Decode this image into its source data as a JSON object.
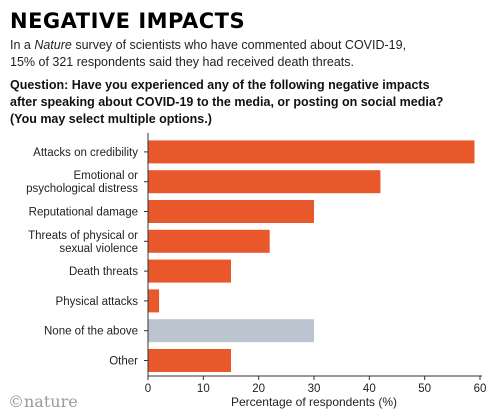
{
  "header": {
    "title": "NEGATIVE IMPACTS",
    "subtitle_pre": "In a ",
    "subtitle_em": "Nature",
    "subtitle_line1_post": " survey of scientists who have commented about COVID-19,",
    "subtitle_line2": "15% of 321 respondents said they had received death threats.",
    "question_lines": [
      "Question: Have you experienced any of the following negative impacts",
      "after speaking about COVID-19 to the media, or posting on social media?",
      "(You may select multiple options.)"
    ]
  },
  "logo": {
    "text": "©nature"
  },
  "colors": {
    "primary_bar": "#e8582b",
    "neutral_bar": "#bcc5cf",
    "axis": "#333333"
  },
  "chart_data": {
    "type": "bar",
    "orientation": "horizontal",
    "categories": [
      "Attacks on credibility",
      "Emotional or psychological distress",
      "Reputational damage",
      "Threats of physical or sexual violence",
      "Death threats",
      "Physical attacks",
      "None of the above",
      "Other"
    ],
    "category_label_lines": [
      [
        "Attacks on credibility"
      ],
      [
        "Emotional or",
        "psychological distress"
      ],
      [
        "Reputational damage"
      ],
      [
        "Threats of physical or",
        "sexual violence"
      ],
      [
        "Death threats"
      ],
      [
        "Physical attacks"
      ],
      [
        "None of the above"
      ],
      [
        "Other"
      ]
    ],
    "values": [
      59,
      42,
      30,
      22,
      15,
      2,
      30,
      15
    ],
    "bar_colors": [
      "#e8582b",
      "#e8582b",
      "#e8582b",
      "#e8582b",
      "#e8582b",
      "#e8582b",
      "#bcc5cf",
      "#e8582b"
    ],
    "xlabel": "Percentage of respondents (%)",
    "ylabel": "",
    "xlim": [
      0,
      60
    ],
    "xticks": [
      "0",
      "10",
      "20",
      "30",
      "40",
      "50",
      "60"
    ],
    "grid": false
  }
}
